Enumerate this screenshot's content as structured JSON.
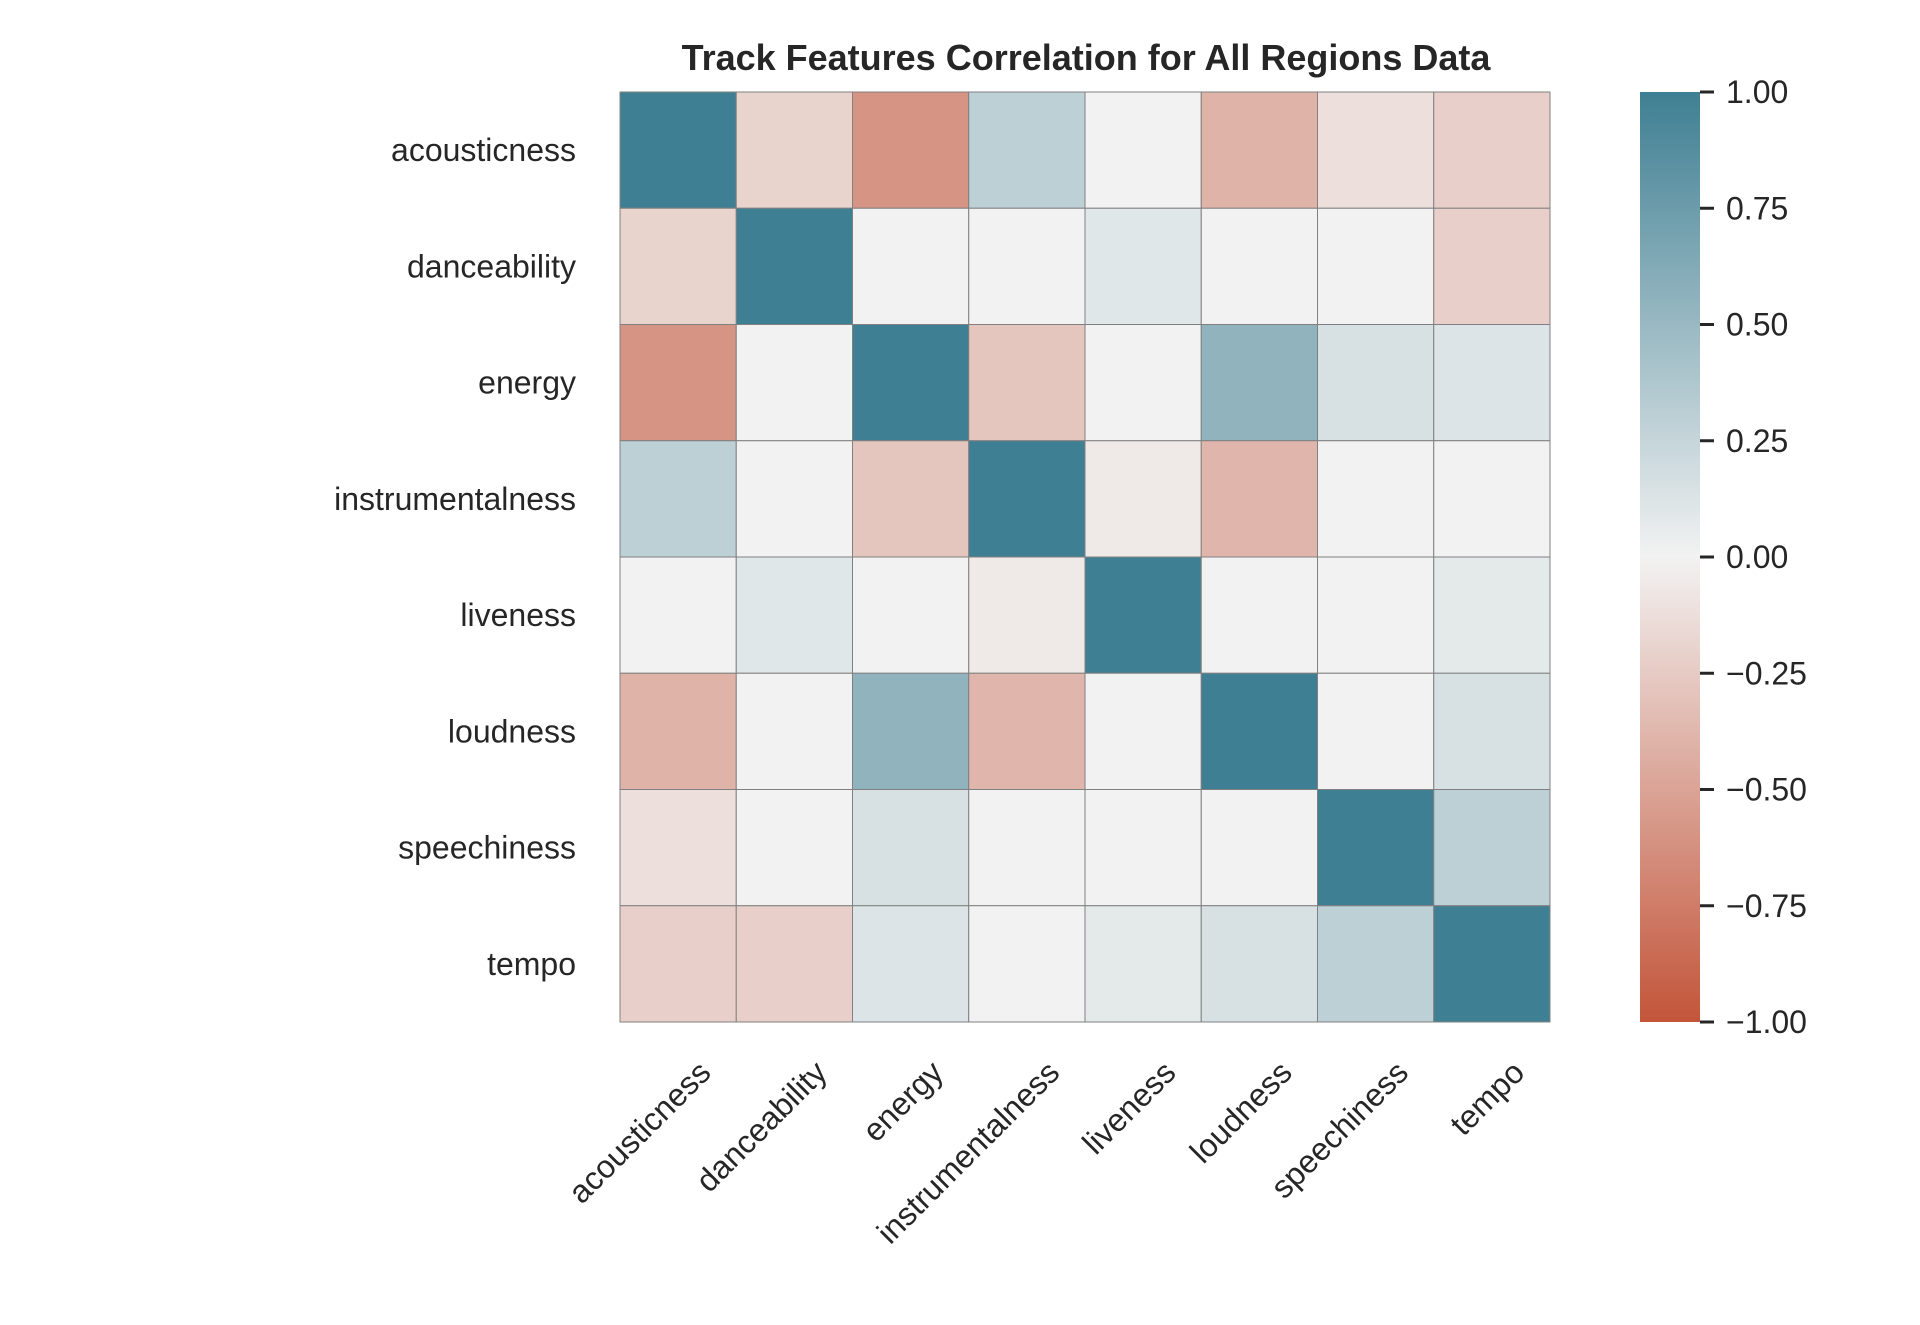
{
  "chart_data": {
    "type": "heatmap",
    "title": "Track Features Correlation for All Regions Data",
    "xlabel": "",
    "ylabel": "",
    "row_labels": [
      "acousticness",
      "danceability",
      "energy",
      "instrumentalness",
      "liveness",
      "loudness",
      "speechiness",
      "tempo"
    ],
    "col_labels": [
      "acousticness",
      "danceability",
      "energy",
      "instrumentalness",
      "liveness",
      "loudness",
      "speechiness",
      "tempo"
    ],
    "values": [
      [
        1.0,
        -0.2,
        -0.6,
        0.3,
        0.0,
        -0.4,
        -0.12,
        -0.22
      ],
      [
        -0.2,
        1.0,
        0.0,
        0.0,
        0.1,
        0.0,
        0.0,
        -0.22
      ],
      [
        -0.6,
        0.0,
        1.0,
        -0.28,
        0.0,
        0.55,
        0.15,
        0.12
      ],
      [
        0.3,
        0.0,
        -0.28,
        1.0,
        -0.06,
        -0.38,
        0.0,
        0.0
      ],
      [
        0.0,
        0.1,
        0.0,
        -0.06,
        1.0,
        0.0,
        0.0,
        0.08
      ],
      [
        -0.4,
        0.0,
        0.55,
        -0.38,
        0.0,
        1.0,
        0.0,
        0.15
      ],
      [
        -0.12,
        0.0,
        0.15,
        0.0,
        0.0,
        0.0,
        1.0,
        0.3
      ],
      [
        -0.22,
        -0.22,
        0.12,
        0.0,
        0.08,
        0.15,
        0.3,
        1.0
      ]
    ],
    "vmin": -1.0,
    "vmax": 1.0,
    "colorbar": {
      "ticks": [
        1.0,
        0.75,
        0.5,
        0.25,
        0.0,
        -0.25,
        -0.5,
        -0.75,
        -1.0
      ],
      "tick_labels": [
        "1.00",
        "0.75",
        "0.50",
        "0.25",
        "0.00",
        "−0.25",
        "−0.50",
        "−0.75",
        "−1.00"
      ]
    },
    "colors": {
      "negative": "#c3553a",
      "center": "#f2f2f2",
      "positive": "#3f7f93",
      "gridline": "#808080",
      "text": "#262626"
    },
    "grid": false,
    "legend": "colorbar-right"
  }
}
